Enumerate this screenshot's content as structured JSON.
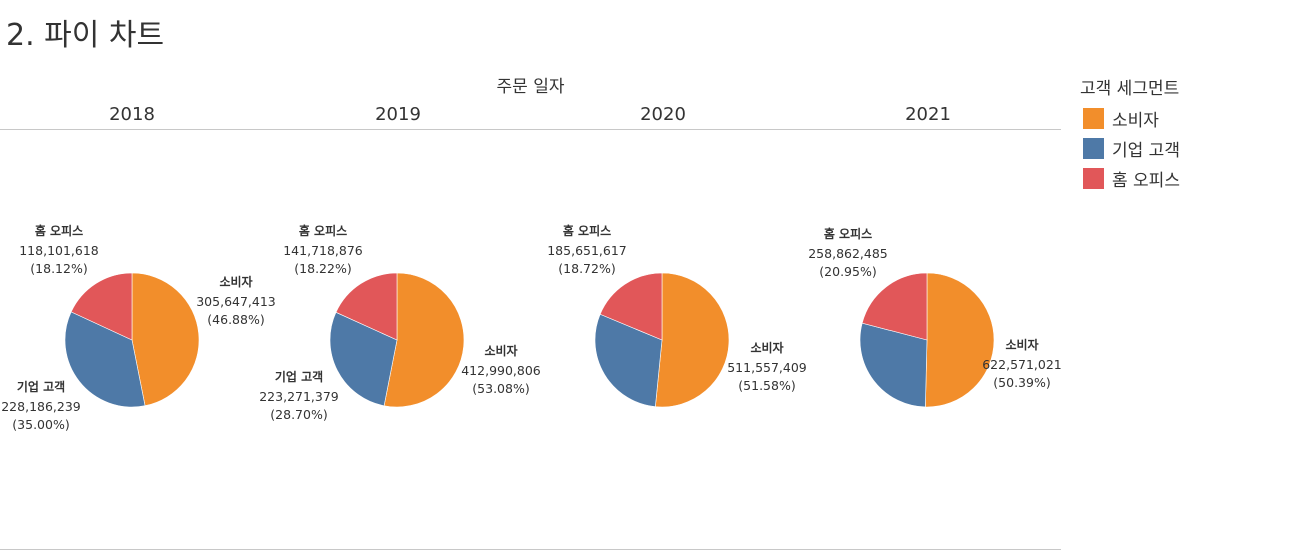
{
  "page_title": "2. 파이 차트",
  "column_header": "주문 일자",
  "legend": {
    "title": "고객 세그먼트",
    "items": [
      {
        "label": "소비자",
        "color": "#F28E2B"
      },
      {
        "label": "기업 고객",
        "color": "#4E79A7"
      },
      {
        "label": "홈 오피스",
        "color": "#E15759"
      }
    ]
  },
  "chart_data": [
    {
      "type": "pie",
      "title": "2018",
      "slices": [
        {
          "label": "소비자",
          "value": 305647413,
          "value_text": "305,647,413",
          "percent_text": "(46.88%)",
          "color": "#F28E2B"
        },
        {
          "label": "기업 고객",
          "value": 228186239,
          "value_text": "228,186,239",
          "percent_text": "(35.00%)",
          "color": "#4E79A7"
        },
        {
          "label": "홈 오피스",
          "value": 118101618,
          "value_text": "118,101,618",
          "percent_text": "(18.12%)",
          "color": "#E15759"
        }
      ]
    },
    {
      "type": "pie",
      "title": "2019",
      "slices": [
        {
          "label": "소비자",
          "value": 412990806,
          "value_text": "412,990,806",
          "percent_text": "(53.08%)",
          "color": "#F28E2B"
        },
        {
          "label": "기업 고객",
          "value": 223271379,
          "value_text": "223,271,379",
          "percent_text": "(28.70%)",
          "color": "#4E79A7"
        },
        {
          "label": "홈 오피스",
          "value": 141718876,
          "value_text": "141,718,876",
          "percent_text": "(18.22%)",
          "color": "#E15759"
        }
      ]
    },
    {
      "type": "pie",
      "title": "2020",
      "slices": [
        {
          "label": "소비자",
          "value": 511557409,
          "value_text": "511,557,409",
          "percent_text": "(51.58%)",
          "color": "#F28E2B"
        },
        {
          "label": "기업 고객",
          "value": 294539540,
          "value_text": "",
          "percent_text": "",
          "color": "#4E79A7"
        },
        {
          "label": "홈 오피스",
          "value": 185651617,
          "value_text": "185,651,617",
          "percent_text": "(18.72%)",
          "color": "#E15759"
        }
      ]
    },
    {
      "type": "pie",
      "title": "2021",
      "slices": [
        {
          "label": "소비자",
          "value": 622571021,
          "value_text": "622,571,021",
          "percent_text": "(50.39%)",
          "color": "#F28E2B"
        },
        {
          "label": "기업 고객",
          "value": 354148200,
          "value_text": "",
          "percent_text": "",
          "color": "#4E79A7"
        },
        {
          "label": "홈 오피스",
          "value": 258862485,
          "value_text": "258,862,485",
          "percent_text": "(20.95%)",
          "color": "#E15759"
        }
      ]
    }
  ]
}
